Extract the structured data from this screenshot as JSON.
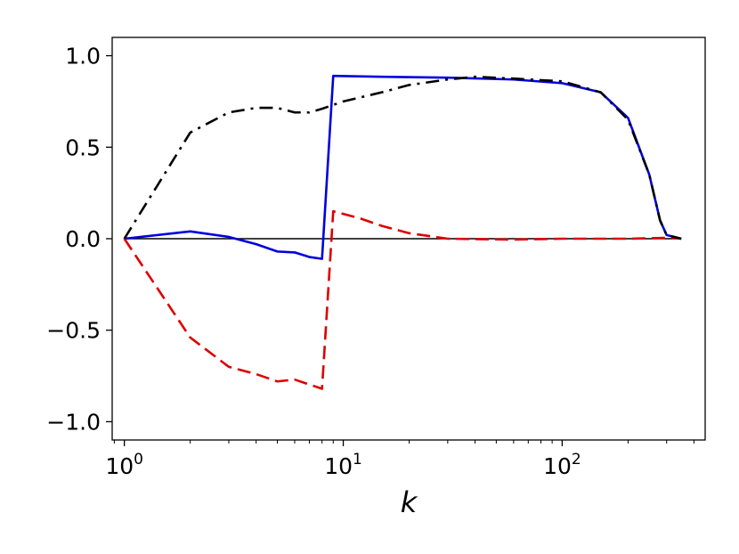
{
  "chart_data": {
    "type": "line",
    "title": "",
    "xlabel": "k",
    "ylabel": "",
    "xscale": "log",
    "xlim": [
      0.88,
      450
    ],
    "ylim": [
      -1.1,
      1.1
    ],
    "grid": false,
    "legend": "none",
    "x_ticks": [
      {
        "value": 1,
        "base": "10",
        "exp": "0"
      },
      {
        "value": 10,
        "base": "10",
        "exp": "1"
      },
      {
        "value": 100,
        "base": "10",
        "exp": "2"
      }
    ],
    "y_ticks": [
      {
        "value": -1.0,
        "label": "−1.0"
      },
      {
        "value": -0.5,
        "label": "−0.5"
      },
      {
        "value": 0.0,
        "label": "0.0"
      },
      {
        "value": 0.5,
        "label": "0.5"
      },
      {
        "value": 1.0,
        "label": "1.0"
      }
    ],
    "zero_line": {
      "y": 0,
      "x_range": [
        1,
        350
      ],
      "color": "#000000"
    },
    "series": [
      {
        "color": "#0000dd",
        "dash": "solid",
        "points": [
          [
            1,
            0
          ],
          [
            2,
            0.04
          ],
          [
            3,
            0.01
          ],
          [
            4,
            -0.03
          ],
          [
            5,
            -0.07
          ],
          [
            6,
            -0.075
          ],
          [
            7,
            -0.1
          ],
          [
            8,
            -0.11
          ],
          [
            9,
            0.89
          ],
          [
            15,
            0.885
          ],
          [
            30,
            0.88
          ],
          [
            60,
            0.87
          ],
          [
            100,
            0.85
          ],
          [
            150,
            0.8
          ],
          [
            200,
            0.66
          ],
          [
            250,
            0.35
          ],
          [
            280,
            0.1
          ],
          [
            300,
            0.02
          ],
          [
            350,
            0
          ]
        ]
      },
      {
        "color": "#dd0000",
        "dash": "dashed",
        "points": [
          [
            1,
            0
          ],
          [
            2,
            -0.54
          ],
          [
            3,
            -0.7
          ],
          [
            4,
            -0.74
          ],
          [
            5,
            -0.78
          ],
          [
            6,
            -0.77
          ],
          [
            8,
            -0.82
          ],
          [
            9,
            0.15
          ],
          [
            12,
            0.11
          ],
          [
            15,
            0.07
          ],
          [
            20,
            0.03
          ],
          [
            30,
            0
          ],
          [
            60,
            -0.005
          ],
          [
            100,
            0
          ],
          [
            200,
            0
          ],
          [
            300,
            0.005
          ],
          [
            350,
            0
          ]
        ]
      },
      {
        "color": "#000000",
        "dash": "dashdot",
        "points": [
          [
            1,
            0
          ],
          [
            2,
            0.58
          ],
          [
            3,
            0.69
          ],
          [
            4,
            0.715
          ],
          [
            5,
            0.715
          ],
          [
            6,
            0.69
          ],
          [
            7,
            0.69
          ],
          [
            8,
            0.71
          ],
          [
            10,
            0.75
          ],
          [
            15,
            0.8
          ],
          [
            20,
            0.84
          ],
          [
            30,
            0.87
          ],
          [
            40,
            0.885
          ],
          [
            60,
            0.875
          ],
          [
            100,
            0.86
          ],
          [
            150,
            0.8
          ],
          [
            200,
            0.65
          ],
          [
            250,
            0.35
          ],
          [
            280,
            0.1
          ],
          [
            300,
            0.02
          ],
          [
            350,
            0
          ]
        ]
      }
    ]
  }
}
